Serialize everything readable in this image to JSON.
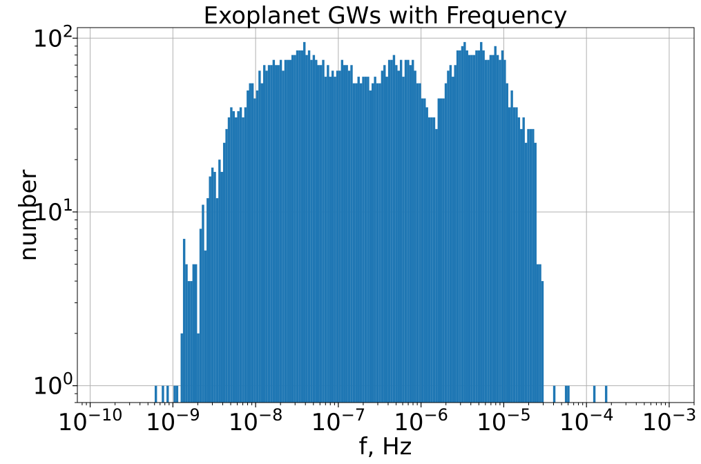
{
  "chart_data": {
    "type": "bar",
    "title": "Exoplanet GWs with Frequency",
    "xlabel": "f, Hz",
    "ylabel": "number",
    "xscale": "log",
    "yscale": "log",
    "xlim": [
      7e-11,
      0.002
    ],
    "ylim": [
      0.8,
      115
    ],
    "grid": true,
    "bar_color": "#1f77b4",
    "x_ticks": [
      {
        "base": "10",
        "exp": "−10",
        "value": 1e-10
      },
      {
        "base": "10",
        "exp": "−9",
        "value": 1e-09
      },
      {
        "base": "10",
        "exp": "−8",
        "value": 1e-08
      },
      {
        "base": "10",
        "exp": "−7",
        "value": 1e-07
      },
      {
        "base": "10",
        "exp": "−6",
        "value": 1e-06
      },
      {
        "base": "10",
        "exp": "−5",
        "value": 1e-05
      },
      {
        "base": "10",
        "exp": "−4",
        "value": 0.0001
      },
      {
        "base": "10",
        "exp": "−3",
        "value": 0.001
      }
    ],
    "y_ticks": [
      {
        "base": "10",
        "exp": "0",
        "value": 1
      },
      {
        "base": "10",
        "exp": "1",
        "value": 10
      },
      {
        "base": "10",
        "exp": "2",
        "value": 100
      }
    ],
    "bins": {
      "log10_first_left_edge": -9.22,
      "log10_width": 0.0285,
      "counts": [
        1,
        0,
        0,
        1,
        0,
        1,
        0,
        0,
        1,
        1,
        0,
        2,
        7,
        5,
        4,
        4,
        5,
        5,
        2,
        8,
        11,
        6,
        12,
        16,
        18,
        17,
        12,
        20,
        17,
        25,
        30,
        35,
        40,
        38,
        35,
        38,
        40,
        35,
        40,
        50,
        55,
        55,
        45,
        50,
        65,
        55,
        70,
        65,
        70,
        70,
        75,
        70,
        70,
        75,
        65,
        75,
        75,
        75,
        80,
        80,
        85,
        85,
        85,
        95,
        80,
        85,
        75,
        80,
        75,
        70,
        70,
        75,
        60,
        70,
        60,
        65,
        60,
        65,
        65,
        75,
        70,
        70,
        65,
        70,
        55,
        55,
        60,
        55,
        60,
        60,
        60,
        50,
        55,
        60,
        55,
        55,
        65,
        70,
        60,
        75,
        75,
        80,
        70,
        65,
        75,
        60,
        75,
        75,
        70,
        75,
        65,
        55,
        55,
        45,
        45,
        40,
        35,
        35,
        35,
        30,
        45,
        45,
        45,
        55,
        65,
        70,
        60,
        70,
        85,
        85,
        90,
        95,
        85,
        80,
        80,
        80,
        85,
        85,
        95,
        85,
        75,
        75,
        80,
        80,
        90,
        80,
        75,
        85,
        75,
        55,
        40,
        50,
        40,
        40,
        35,
        30,
        35,
        25,
        30,
        30,
        30,
        25,
        5,
        5,
        4,
        0,
        0,
        0,
        0,
        1,
        0,
        0,
        0,
        0,
        1,
        1,
        0,
        0,
        0,
        0,
        0,
        0,
        0,
        0,
        0,
        0,
        1,
        0,
        0,
        0,
        0,
        1
      ]
    }
  }
}
